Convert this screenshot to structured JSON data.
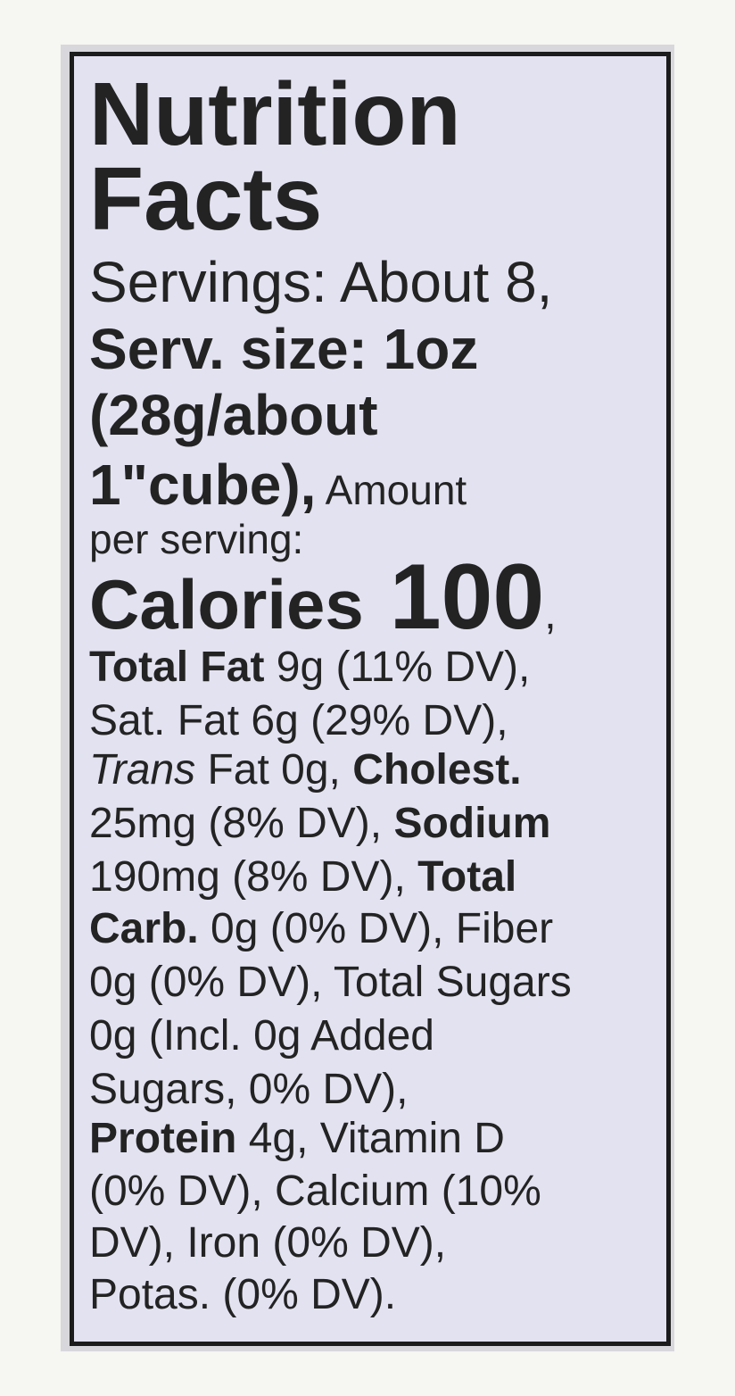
{
  "label": {
    "lines": [
      [
        "Nutrition"
      ],
      [
        "Facts"
      ],
      [
        "Servings: About 8,"
      ],
      [
        "Serv. size: 1oz"
      ],
      [
        "(28g/about"
      ],
      [
        "1\"cube),",
        " Amount"
      ],
      [
        "per serving:"
      ],
      [
        "Calories",
        " 100",
        ","
      ],
      [
        "Total Fat",
        " 9g (11% DV),"
      ],
      [
        "Sat. Fat 6g (29% DV),"
      ],
      [
        "Trans",
        " Fat 0g, ",
        "Cholest."
      ],
      [
        "25mg (8% DV), ",
        "Sodium"
      ],
      [
        "190mg (8% DV), ",
        "Total"
      ],
      [
        "Carb.",
        " 0g (0% DV), Fiber"
      ],
      [
        "0g (0% DV), Total Sugars"
      ],
      [
        "0g (Incl. 0g Added"
      ],
      [
        "Sugars, 0% DV),"
      ],
      [
        "Protein",
        " 4g, Vitamin D"
      ],
      [
        "(0% DV), Calcium (10%"
      ],
      [
        "DV), Iron (0% DV),"
      ],
      [
        "Potas. (0% DV)."
      ]
    ]
  }
}
